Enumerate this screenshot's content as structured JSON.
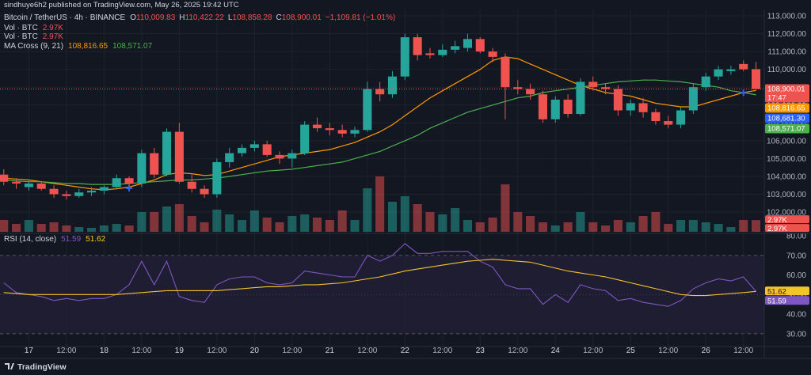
{
  "header": {
    "publisher": "sindhuye6h2 published on TradingView.com, May 26, 2025 19:42 UTC"
  },
  "footer": {
    "logo": "TradingView"
  },
  "chart_data": [
    {
      "type": "candlestick",
      "title": "Bitcoin / TetherUS · 4h · BINANCE",
      "legend_values": [
        {
          "key": "O",
          "label": "110,009.83"
        },
        {
          "key": "H",
          "label": "110,422.22"
        },
        {
          "key": "L",
          "label": "108,858.28"
        },
        {
          "key": "C",
          "label": "108,900.01"
        }
      ],
      "change": "−1,109.81 (−1.01%)",
      "countdown": "17:47",
      "up_color": "#26a69a",
      "down_color": "#ef5350",
      "open": [
        104100,
        103700,
        103400,
        103600,
        103300,
        103000,
        102900,
        103100,
        103200,
        103400,
        103900,
        103600,
        105300,
        104100,
        106500,
        103700,
        103300,
        103000,
        104800,
        105300,
        105600,
        105800,
        105200,
        105000,
        105300,
        106900,
        106700,
        106600,
        106400,
        106600,
        108900,
        108600,
        109600,
        111800,
        110900,
        110800,
        111100,
        111200,
        111700,
        111000,
        110700,
        109000,
        108900,
        108600,
        107200,
        108300,
        107500,
        109300,
        109000,
        108900,
        107700,
        108100,
        107600,
        107100,
        106900,
        107700,
        109000,
        109600,
        109900,
        110300,
        110009.83
      ],
      "high": [
        104400,
        103900,
        103800,
        103700,
        103500,
        103200,
        103300,
        103400,
        103500,
        104100,
        104000,
        105500,
        105600,
        106700,
        107000,
        104100,
        103500,
        105000,
        105600,
        105800,
        106000,
        106000,
        105400,
        105500,
        107100,
        107300,
        107000,
        106900,
        106800,
        109300,
        109300,
        109900,
        112000,
        112000,
        111200,
        111400,
        111600,
        112000,
        111800,
        111200,
        110900,
        109400,
        109200,
        108800,
        108500,
        108600,
        109500,
        109600,
        109200,
        109100,
        108300,
        108400,
        107800,
        107400,
        107900,
        109200,
        109800,
        110200,
        110200,
        110500,
        110422.22
      ],
      "low": [
        103500,
        103300,
        103200,
        103200,
        102800,
        102700,
        102800,
        102900,
        103000,
        103300,
        103300,
        103400,
        103900,
        104000,
        103600,
        103100,
        102800,
        102800,
        104500,
        105100,
        105400,
        105100,
        104700,
        104500,
        105200,
        106500,
        106300,
        106200,
        106200,
        106500,
        108200,
        108400,
        109400,
        110500,
        110600,
        110700,
        110900,
        111000,
        110900,
        110400,
        107200,
        108600,
        108300,
        107000,
        107000,
        107300,
        107400,
        108800,
        108600,
        107400,
        107400,
        107300,
        106900,
        106700,
        106700,
        107500,
        108800,
        109400,
        109700,
        109900,
        108858.28
      ],
      "close": [
        103700,
        103600,
        103600,
        103300,
        103000,
        102900,
        103100,
        103200,
        103400,
        103900,
        103600,
        105300,
        104100,
        106500,
        103700,
        103300,
        103000,
        104800,
        105300,
        105600,
        105800,
        105200,
        105000,
        105300,
        106900,
        106700,
        106600,
        106400,
        106600,
        108900,
        108600,
        109600,
        111800,
        110800,
        110800,
        111100,
        111300,
        111700,
        111000,
        110700,
        109000,
        108900,
        108600,
        107200,
        108300,
        107500,
        109300,
        109000,
        108900,
        107700,
        108100,
        107600,
        107100,
        106900,
        107700,
        109000,
        109600,
        110000,
        110000,
        110000,
        108900.01
      ],
      "volume": {
        "name": "Vol · BTC",
        "last_label": "2.97K",
        "values": [
          3000,
          2000,
          3000,
          2000,
          2400,
          1600,
          1200,
          1000,
          1600,
          2000,
          1600,
          5000,
          5000,
          6400,
          7000,
          4000,
          2400,
          5600,
          4400,
          3000,
          5400,
          3600,
          2400,
          4000,
          4400,
          3600,
          3000,
          5400,
          3000,
          11000,
          14000,
          7600,
          9000,
          7000,
          5000,
          4400,
          6000,
          3000,
          2400,
          3600,
          12000,
          5000,
          4000,
          2400,
          1600,
          2400,
          5000,
          2400,
          1600,
          3000,
          2400,
          4000,
          5000,
          2000,
          3000,
          3000,
          2400,
          2000,
          1200,
          3000,
          2970
        ]
      },
      "indicator": "MA Cross (9, 21)",
      "series": [
        {
          "color": "#ff9800",
          "last_label": "108,816.65",
          "values": [
            103900,
            103850,
            103800,
            103700,
            103600,
            103500,
            103400,
            103300,
            103250,
            103300,
            103400,
            103600,
            103800,
            104100,
            104200,
            104150,
            104050,
            104100,
            104300,
            104500,
            104700,
            104900,
            105100,
            105200,
            105300,
            105400,
            105500,
            105700,
            105900,
            106200,
            106500,
            106900,
            107400,
            107900,
            108400,
            108800,
            109200,
            109600,
            110000,
            110500,
            110700,
            110600,
            110300,
            110000,
            109700,
            109400,
            109100,
            108900,
            108700,
            108600,
            108500,
            108300,
            108100,
            108000,
            107900,
            107900,
            108100,
            108300,
            108500,
            108700,
            108816.65
          ]
        },
        {
          "color": "#4caf50",
          "last_label": "108,571.07",
          "values": [
            103800,
            103750,
            103700,
            103700,
            103650,
            103600,
            103600,
            103550,
            103550,
            103550,
            103600,
            103650,
            103700,
            103750,
            103800,
            103800,
            103850,
            103900,
            104000,
            104100,
            104200,
            104300,
            104350,
            104400,
            104500,
            104600,
            104700,
            104800,
            105000,
            105200,
            105400,
            105700,
            106000,
            106300,
            106700,
            107000,
            107300,
            107600,
            107800,
            108000,
            108200,
            108400,
            108500,
            108700,
            108800,
            108900,
            109000,
            109100,
            109200,
            109300,
            109350,
            109400,
            109400,
            109350,
            109300,
            109200,
            109100,
            109000,
            108800,
            108700,
            108571.07
          ]
        }
      ],
      "markers": {
        "color": "#2962ff",
        "x": [
          10,
          59
        ],
        "values": [
          103330,
          108681.3
        ],
        "value_labels": [
          null,
          "108,681.30"
        ]
      },
      "xlim": [
        -0.3,
        60.66
      ],
      "ylim": [
        100805,
        113355
      ],
      "yticks": [
        {
          "value": 102000,
          "label": "102,000.00"
        },
        {
          "value": 103000,
          "label": "103,000.00"
        },
        {
          "value": 104000,
          "label": "104,000.00"
        },
        {
          "value": 105000,
          "label": "105,000.00"
        },
        {
          "value": 106000,
          "label": "106,000.00"
        },
        {
          "value": 107000,
          "label": "107,000.00"
        },
        {
          "value": 108000,
          "label": "108,000.00"
        },
        {
          "value": 109000,
          "label": "109,000.00"
        },
        {
          "value": 110000,
          "label": "110,000.00"
        },
        {
          "value": 111000,
          "label": "111,000.00"
        },
        {
          "value": 112000,
          "label": "112,000.00"
        },
        {
          "value": 113000,
          "label": "113,000.00"
        }
      ],
      "grid": true
    },
    {
      "type": "line",
      "title": "RSI (14, close)",
      "series": [
        {
          "color": "#7e57c2",
          "last_label": "51.59",
          "values": [
            56,
            51,
            50,
            49,
            47,
            48,
            47,
            48,
            48,
            50,
            55,
            67,
            55,
            67,
            49,
            47,
            46,
            55,
            58,
            59,
            59,
            56,
            55,
            56,
            62,
            61,
            60,
            59,
            59,
            70,
            67,
            70,
            76,
            71,
            71,
            72,
            72,
            72,
            67,
            64,
            55,
            53,
            53,
            45,
            50,
            46,
            55,
            53,
            52,
            47,
            48,
            46,
            45,
            44,
            47,
            53,
            56,
            58,
            57,
            59,
            51.59
          ]
        },
        {
          "color": "#f5c32a",
          "last_label": "51.62",
          "values": [
            51,
            50.5,
            50,
            50,
            50,
            50,
            50,
            50,
            50,
            50,
            50.5,
            51,
            51.5,
            52,
            52,
            52,
            52,
            52,
            52.5,
            53,
            53.5,
            54,
            54,
            54.5,
            55,
            55,
            55.5,
            56,
            57,
            58,
            59,
            60.5,
            62,
            63,
            64,
            65,
            66,
            67,
            67.5,
            68,
            67.5,
            67,
            66.5,
            65,
            63.5,
            62,
            61,
            60,
            59,
            57.5,
            56,
            54.5,
            53,
            51.5,
            50,
            49.5,
            49.5,
            50,
            50.5,
            51,
            51.62
          ]
        }
      ],
      "band": [
        30,
        70
      ],
      "midline": 50,
      "xlim": [
        -0.3,
        60.66
      ],
      "ylim": [
        23.5,
        81.2
      ],
      "yticks": [
        {
          "value": 30,
          "label": "30.00"
        },
        {
          "value": 40,
          "label": "40.00"
        },
        {
          "value": 50,
          "label": "50.00"
        },
        {
          "value": 60,
          "label": "60.00"
        },
        {
          "value": 70,
          "label": "70.00"
        },
        {
          "value": 80,
          "label": "80.00"
        }
      ],
      "xticks": [
        {
          "value": 2,
          "label": "17"
        },
        {
          "value": 5,
          "label": "12:00"
        },
        {
          "value": 8,
          "label": "18"
        },
        {
          "value": 11,
          "label": "12:00"
        },
        {
          "value": 14,
          "label": "19"
        },
        {
          "value": 17,
          "label": "12:00"
        },
        {
          "value": 20,
          "label": "20"
        },
        {
          "value": 23,
          "label": "12:00"
        },
        {
          "value": 26,
          "label": "21"
        },
        {
          "value": 29,
          "label": "12:00"
        },
        {
          "value": 32,
          "label": "22"
        },
        {
          "value": 35,
          "label": "12:00"
        },
        {
          "value": 38,
          "label": "23"
        },
        {
          "value": 41,
          "label": "12:00"
        },
        {
          "value": 44,
          "label": "24"
        },
        {
          "value": 47,
          "label": "12:00"
        },
        {
          "value": 50,
          "label": "25"
        },
        {
          "value": 53,
          "label": "12:00"
        },
        {
          "value": 56,
          "label": "26"
        },
        {
          "value": 59,
          "label": "12:00"
        }
      ],
      "grid": true
    }
  ]
}
